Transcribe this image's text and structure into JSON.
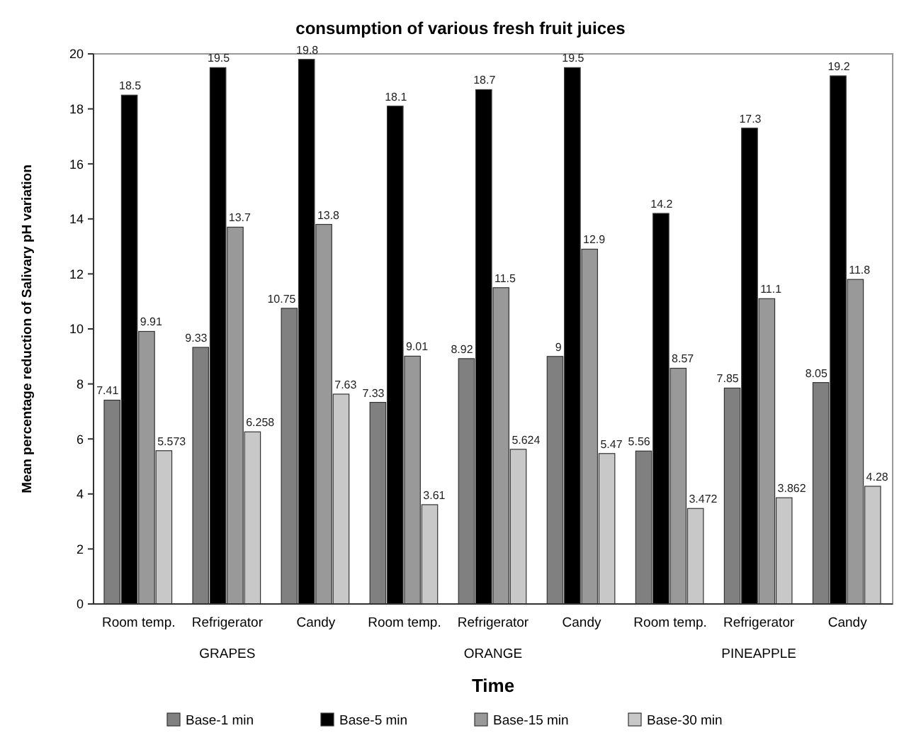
{
  "chart_data": {
    "type": "bar",
    "title": "consumption of  various fresh fruit  juices",
    "xlabel": "Time",
    "ylabel": "Mean percentage reduction of Salivary pH variation",
    "categories": [
      "Room temp.",
      "Refrigerator",
      "Candy",
      "Room temp.",
      "Refrigerator",
      "Candy",
      "Room temp.",
      "Refrigerator",
      "Candy"
    ],
    "annotations": [
      "GRAPES",
      "ORANGE",
      "PINEAPPLE"
    ],
    "series": [
      {
        "name": "Base-1 min",
        "color": "#808080",
        "values": [
          7.41,
          9.33,
          10.75,
          7.33,
          8.92,
          9.0,
          5.56,
          7.85,
          8.05
        ]
      },
      {
        "name": "Base-5 min",
        "color": "#000000",
        "values": [
          18.5,
          19.5,
          19.8,
          18.1,
          18.7,
          19.5,
          14.2,
          17.3,
          19.2
        ]
      },
      {
        "name": "Base-15 min",
        "color": "#999999",
        "values": [
          9.91,
          13.7,
          13.8,
          9.01,
          11.5,
          12.9,
          8.57,
          11.1,
          11.8
        ]
      },
      {
        "name": "Base-30 min",
        "color": "#c8c8c8",
        "values": [
          5.573,
          6.258,
          7.63,
          3.61,
          5.624,
          5.47,
          3.472,
          3.862,
          4.28
        ]
      }
    ],
    "ylim": [
      0,
      20
    ],
    "yticks": [
      0,
      2,
      4,
      6,
      8,
      10,
      12,
      14,
      16,
      18,
      20
    ],
    "data_labels": true,
    "legend": "bottom"
  }
}
